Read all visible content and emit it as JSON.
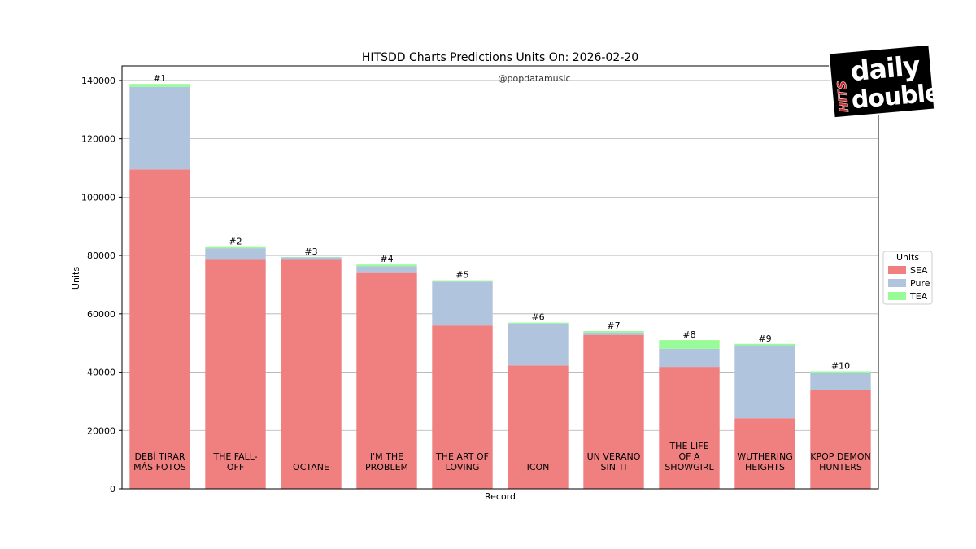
{
  "chart_data": {
    "type": "bar",
    "stacked": true,
    "title": "HITSDD Charts Predictions Units On: 2026-02-20",
    "watermark": "@popdatamusic",
    "xlabel": "Record",
    "ylabel": "Units",
    "ylim": [
      0,
      145000
    ],
    "yticks": [
      0,
      20000,
      40000,
      60000,
      80000,
      100000,
      120000,
      140000
    ],
    "grid": "horizontal",
    "legend": {
      "title": "Units",
      "placement": "right, outside plot"
    },
    "categories": [
      [
        "DEBÍ TIRAR",
        "MÁS FOTOS"
      ],
      [
        "THE FALL-",
        "OFF"
      ],
      [
        "OCTANE"
      ],
      [
        "I'M THE",
        "PROBLEM"
      ],
      [
        "THE ART OF",
        "LOVING"
      ],
      [
        "ICON"
      ],
      [
        "UN VERANO",
        "SIN TI"
      ],
      [
        "THE LIFE",
        "OF A",
        "SHOWGIRL"
      ],
      [
        "WUTHERING",
        "HEIGHTS"
      ],
      [
        "KPOP DEMON",
        "HUNTERS"
      ]
    ],
    "ranks": [
      "#1",
      "#2",
      "#3",
      "#4",
      "#5",
      "#6",
      "#7",
      "#8",
      "#9",
      "#10"
    ],
    "series": [
      {
        "name": "SEA",
        "color": "#f08080",
        "values": [
          109500,
          78500,
          78500,
          74000,
          56000,
          42300,
          52800,
          41800,
          24200,
          34000
        ]
      },
      {
        "name": "Pure",
        "color": "#b0c4de",
        "values": [
          28300,
          4000,
          900,
          2300,
          15000,
          14400,
          800,
          6200,
          25000,
          5800
        ]
      },
      {
        "name": "TEA",
        "color": "#98fb98",
        "values": [
          1000,
          400,
          100,
          600,
          500,
          300,
          500,
          3000,
          500,
          500
        ]
      }
    ]
  },
  "logo": {
    "text_main": [
      "daily",
      "double"
    ],
    "text_side": "HITS",
    "accent": "#d62828"
  }
}
